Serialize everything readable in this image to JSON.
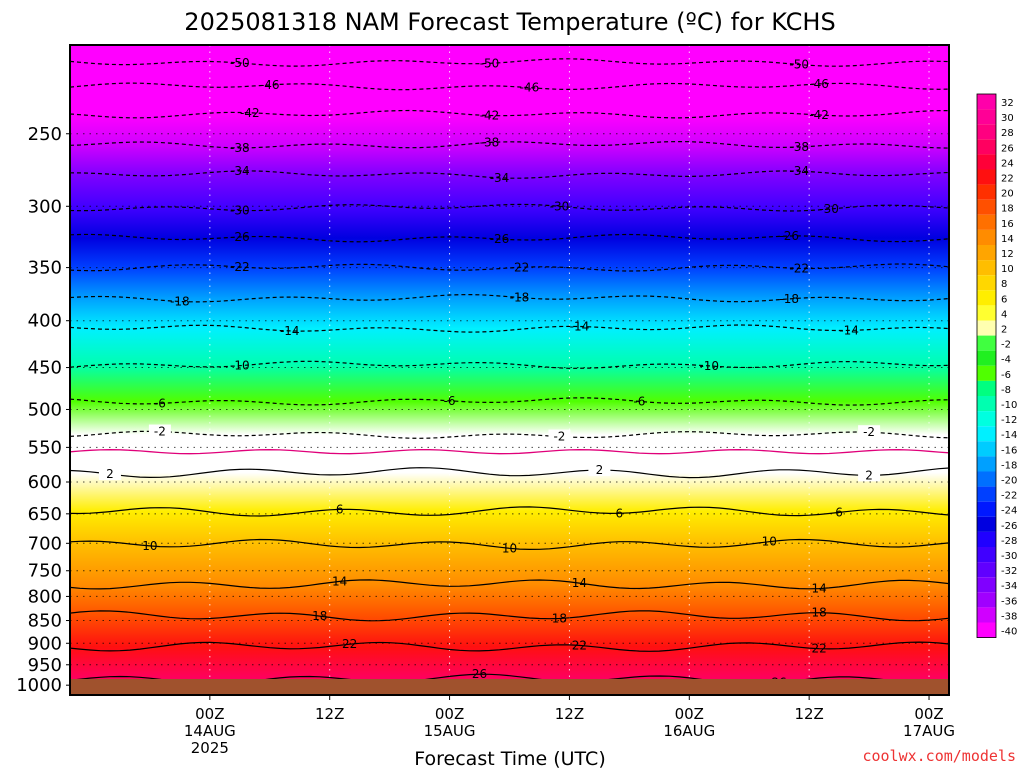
{
  "chart_data": {
    "type": "heatmap",
    "title": "2025081318 NAM Forecast Temperature (ºC) for KCHS",
    "xlabel": "Forecast Time (UTC)",
    "ylabel": "",
    "x_range_hours": [
      -8,
      80
    ],
    "x_ticks": [
      {
        "hour": 6,
        "labels": [
          "00Z",
          "14AUG",
          "2025"
        ]
      },
      {
        "hour": 18,
        "labels": [
          "12Z"
        ]
      },
      {
        "hour": 30,
        "labels": [
          "00Z",
          "15AUG"
        ]
      },
      {
        "hour": 42,
        "labels": [
          "12Z"
        ]
      },
      {
        "hour": 54,
        "labels": [
          "00Z",
          "16AUG"
        ]
      },
      {
        "hour": 66,
        "labels": [
          "12Z"
        ]
      },
      {
        "hour": 78,
        "labels": [
          "00Z",
          "17AUG"
        ]
      }
    ],
    "y_axis": {
      "scale": "log",
      "reversed": true,
      "range_hpa": [
        200,
        1025
      ]
    },
    "y_ticks": [
      250,
      300,
      350,
      400,
      450,
      500,
      550,
      600,
      650,
      700,
      750,
      800,
      850,
      900,
      950,
      1000
    ],
    "colorbar_levels": [
      32,
      30,
      28,
      26,
      24,
      22,
      20,
      18,
      16,
      14,
      12,
      10,
      8,
      6,
      4,
      2,
      -2,
      -4,
      -6,
      -8,
      -10,
      -12,
      -14,
      -16,
      -18,
      -20,
      -22,
      -24,
      -26,
      -28,
      -30,
      -32,
      -34,
      -36,
      -38,
      -40
    ],
    "colors": {
      "ground": "#a0522d",
      "zero_line": "#e0007a",
      "warm_end": "#ff00a0",
      "freezing_band": "#ffffff",
      "cold_end": "#ff00ff"
    },
    "contours": [
      {
        "value": -50,
        "p": 209,
        "labels": [
          {
            "hour": 9,
            "text": "-50"
          },
          {
            "hour": 34,
            "text": "-50"
          },
          {
            "hour": 65,
            "text": "-50"
          }
        ]
      },
      {
        "value": -46,
        "p": 222,
        "labels": [
          {
            "hour": 12,
            "text": "-46"
          },
          {
            "hour": 38,
            "text": "-46"
          },
          {
            "hour": 67,
            "text": "-46"
          }
        ]
      },
      {
        "value": -42,
        "p": 238,
        "labels": [
          {
            "hour": 10,
            "text": "-42"
          },
          {
            "hour": 34,
            "text": "-42"
          },
          {
            "hour": 67,
            "text": "-42"
          }
        ]
      },
      {
        "value": -38,
        "p": 257,
        "labels": [
          {
            "hour": 9,
            "text": "-38"
          },
          {
            "hour": 34,
            "text": "-38"
          },
          {
            "hour": 65,
            "text": "-38"
          }
        ]
      },
      {
        "value": -34,
        "p": 277,
        "labels": [
          {
            "hour": 9,
            "text": "-34"
          },
          {
            "hour": 35,
            "text": "-34"
          },
          {
            "hour": 65,
            "text": "-34"
          }
        ]
      },
      {
        "value": -30,
        "p": 301,
        "labels": [
          {
            "hour": 9,
            "text": "-30"
          },
          {
            "hour": 41,
            "text": "-30"
          },
          {
            "hour": 68,
            "text": "-30"
          }
        ]
      },
      {
        "value": -26,
        "p": 325,
        "labels": [
          {
            "hour": 9,
            "text": "-26"
          },
          {
            "hour": 35,
            "text": "-26"
          },
          {
            "hour": 64,
            "text": "-26"
          }
        ]
      },
      {
        "value": -22,
        "p": 350,
        "labels": [
          {
            "hour": 9,
            "text": "-22"
          },
          {
            "hour": 37,
            "text": "-22"
          },
          {
            "hour": 65,
            "text": "-22"
          }
        ]
      },
      {
        "value": -18,
        "p": 378,
        "labels": [
          {
            "hour": 3,
            "text": "-18"
          },
          {
            "hour": 37,
            "text": "-18"
          },
          {
            "hour": 64,
            "text": "-18"
          }
        ]
      },
      {
        "value": -14,
        "p": 408,
        "labels": [
          {
            "hour": 14,
            "text": "-14"
          },
          {
            "hour": 43,
            "text": "-14"
          },
          {
            "hour": 70,
            "text": "-14"
          }
        ]
      },
      {
        "value": -10,
        "p": 447,
        "labels": [
          {
            "hour": 9,
            "text": "-10"
          },
          {
            "hour": 56,
            "text": "-10"
          }
        ]
      },
      {
        "value": -6,
        "p": 490,
        "labels": [
          {
            "hour": 1,
            "text": "-6"
          },
          {
            "hour": 30,
            "text": "-6"
          },
          {
            "hour": 49,
            "text": "-6"
          }
        ]
      },
      {
        "value": -2,
        "p": 533,
        "labels": [
          {
            "hour": 1,
            "text": "-2"
          },
          {
            "hour": 41,
            "text": "-2"
          },
          {
            "hour": 72,
            "text": "-2"
          }
        ]
      },
      {
        "value": 2,
        "p": 586,
        "labels": [
          {
            "hour": -4,
            "text": "2"
          },
          {
            "hour": 45,
            "text": "2"
          },
          {
            "hour": 72,
            "text": "2"
          }
        ]
      },
      {
        "value": 6,
        "p": 646,
        "labels": [
          {
            "hour": 19,
            "text": "6"
          },
          {
            "hour": 47,
            "text": "6"
          },
          {
            "hour": 69,
            "text": "6"
          }
        ]
      },
      {
        "value": 10,
        "p": 702,
        "labels": [
          {
            "hour": 0,
            "text": "10"
          },
          {
            "hour": 36,
            "text": "10"
          },
          {
            "hour": 62,
            "text": "10"
          }
        ]
      },
      {
        "value": 14,
        "p": 776,
        "labels": [
          {
            "hour": 19,
            "text": "14"
          },
          {
            "hour": 43,
            "text": "14"
          },
          {
            "hour": 67,
            "text": "14"
          }
        ]
      },
      {
        "value": 18,
        "p": 840,
        "labels": [
          {
            "hour": 17,
            "text": "18"
          },
          {
            "hour": 41,
            "text": "18"
          },
          {
            "hour": 67,
            "text": "18"
          }
        ]
      },
      {
        "value": 22,
        "p": 908,
        "labels": [
          {
            "hour": 20,
            "text": "22"
          },
          {
            "hour": 43,
            "text": "22"
          },
          {
            "hour": 67,
            "text": "22"
          }
        ]
      },
      {
        "value": 26,
        "p": 985,
        "labels": [
          {
            "hour": 33,
            "text": "26"
          },
          {
            "hour": 63,
            "text": "26"
          }
        ]
      }
    ],
    "grid": true,
    "legend": "right colorbar"
  },
  "watermark": "coolwx.com/models"
}
